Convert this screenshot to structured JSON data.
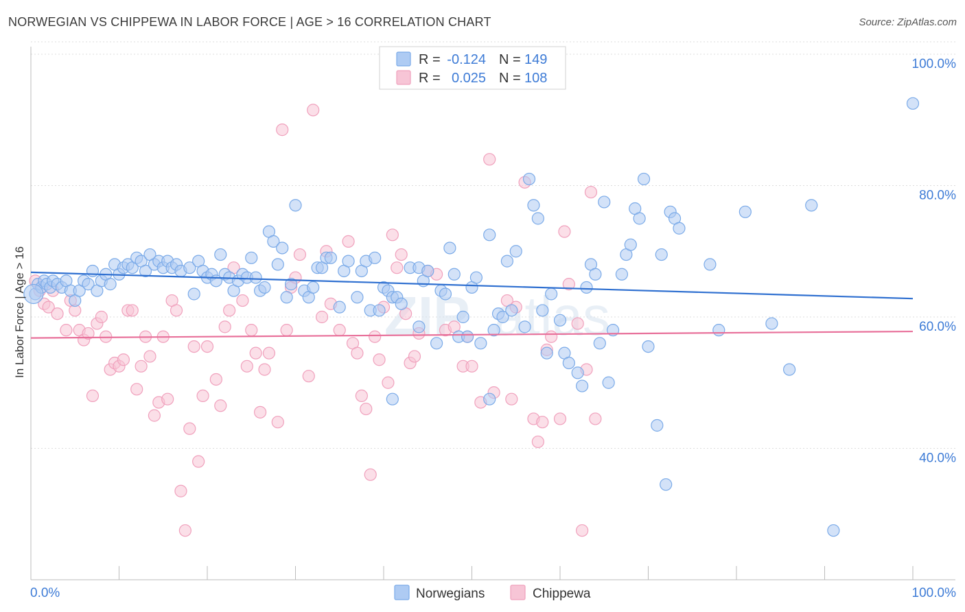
{
  "title": "NORWEGIAN VS CHIPPEWA IN LABOR FORCE | AGE > 16 CORRELATION CHART",
  "source": "Source: ZipAtlas.com",
  "watermark": {
    "a": "ZIP",
    "b": "atlas"
  },
  "chart_data": {
    "type": "scatter",
    "title": "NORWEGIAN VS CHIPPEWA IN LABOR FORCE | AGE > 16 CORRELATION CHART",
    "xlabel": "",
    "ylabel": "In Labor Force | Age > 16",
    "xlim": [
      0,
      100
    ],
    "ylim": [
      20,
      100
    ],
    "y_ticks": [
      {
        "v": 40,
        "label": "40.0%"
      },
      {
        "v": 60,
        "label": "60.0%"
      },
      {
        "v": 80,
        "label": "80.0%"
      },
      {
        "v": 100,
        "label": "100.0%"
      }
    ],
    "x_ticks": [
      {
        "v": 0,
        "label": "0.0%"
      },
      {
        "v": 100,
        "label": "100.0%"
      }
    ],
    "grid": true,
    "legend_position": "top-center",
    "legend": [
      {
        "name": "Norwegians",
        "R_label": "R =",
        "R": "-0.124",
        "N_label": "N =",
        "N": "149",
        "color": "#7aaae8",
        "fill": "#aecbf3"
      },
      {
        "name": "Chippewa",
        "R_label": "R =",
        "R": "0.025",
        "N_label": "N =",
        "N": "108",
        "color": "#f0a0bc",
        "fill": "#f7c5d6"
      }
    ],
    "series": [
      {
        "name": "Norwegians",
        "color": "#7aaae8",
        "fill": "#aecbf3",
        "trend": {
          "x": [
            0,
            100
          ],
          "y": [
            66.8,
            62.8
          ],
          "color": "#2e6fd0"
        },
        "points": [
          [
            0.5,
            63.5
          ],
          [
            0.8,
            65
          ],
          [
            1.2,
            64.5
          ],
          [
            1.5,
            65.5
          ],
          [
            1.8,
            65
          ],
          [
            2.2,
            64.5
          ],
          [
            2.5,
            65.5
          ],
          [
            3,
            65
          ],
          [
            3.5,
            64.5
          ],
          [
            4,
            65.5
          ],
          [
            4.5,
            64
          ],
          [
            5,
            62.5
          ],
          [
            5.5,
            64
          ],
          [
            6,
            65.5
          ],
          [
            6.5,
            65
          ],
          [
            7,
            67
          ],
          [
            7.5,
            64
          ],
          [
            8,
            65.5
          ],
          [
            8.5,
            66.5
          ],
          [
            9,
            65
          ],
          [
            9.5,
            68
          ],
          [
            10,
            66.5
          ],
          [
            10.5,
            67.5
          ],
          [
            11,
            68
          ],
          [
            11.5,
            67.5
          ],
          [
            12,
            69
          ],
          [
            12.5,
            68.5
          ],
          [
            13,
            67
          ],
          [
            13.5,
            69.5
          ],
          [
            14,
            68
          ],
          [
            14.5,
            68.5
          ],
          [
            15,
            67.5
          ],
          [
            15.5,
            68.5
          ],
          [
            16,
            67.5
          ],
          [
            16.5,
            68
          ],
          [
            17,
            67
          ],
          [
            18,
            67.5
          ],
          [
            18.5,
            63.5
          ],
          [
            19,
            68.5
          ],
          [
            19.5,
            67
          ],
          [
            20,
            66
          ],
          [
            20.5,
            66.5
          ],
          [
            21,
            65.5
          ],
          [
            21.5,
            69.5
          ],
          [
            22,
            66.5
          ],
          [
            22.5,
            66
          ],
          [
            23,
            64
          ],
          [
            23.5,
            65.5
          ],
          [
            24,
            66.5
          ],
          [
            24.5,
            66
          ],
          [
            25,
            69
          ],
          [
            25.5,
            66
          ],
          [
            26,
            64
          ],
          [
            26.5,
            64.5
          ],
          [
            27,
            73
          ],
          [
            27.5,
            71.5
          ],
          [
            28,
            68
          ],
          [
            28.5,
            70.5
          ],
          [
            29,
            63
          ],
          [
            29.5,
            65
          ],
          [
            30,
            77
          ],
          [
            31,
            64
          ],
          [
            31.5,
            63
          ],
          [
            32,
            64.5
          ],
          [
            32.5,
            67.5
          ],
          [
            33,
            67.5
          ],
          [
            33.5,
            69
          ],
          [
            34,
            69
          ],
          [
            35,
            61.5
          ],
          [
            35.5,
            67
          ],
          [
            36,
            68.5
          ],
          [
            37,
            63
          ],
          [
            37.5,
            67
          ],
          [
            38,
            68.5
          ],
          [
            38.5,
            61
          ],
          [
            39,
            69
          ],
          [
            39.5,
            61
          ],
          [
            40,
            64.5
          ],
          [
            40.5,
            64
          ],
          [
            41,
            63
          ],
          [
            41.5,
            63
          ],
          [
            42,
            62
          ],
          [
            43,
            67.5
          ],
          [
            44,
            67.5
          ],
          [
            44.5,
            65.5
          ],
          [
            45,
            67
          ],
          [
            46,
            56
          ],
          [
            46.5,
            64
          ],
          [
            47,
            63.5
          ],
          [
            47.5,
            70.5
          ],
          [
            48,
            66.5
          ],
          [
            48.5,
            57
          ],
          [
            49,
            60
          ],
          [
            49.5,
            57
          ],
          [
            50,
            64.5
          ],
          [
            50.5,
            66
          ],
          [
            51,
            56
          ],
          [
            52,
            72.5
          ],
          [
            52.5,
            58
          ],
          [
            53,
            60.5
          ],
          [
            53.5,
            60
          ],
          [
            54,
            68.5
          ],
          [
            54.5,
            61
          ],
          [
            55,
            70
          ],
          [
            56,
            58.5
          ],
          [
            56.5,
            81
          ],
          [
            57,
            77
          ],
          [
            57.5,
            75
          ],
          [
            58,
            61
          ],
          [
            58.5,
            54.5
          ],
          [
            59,
            63.5
          ],
          [
            60,
            59.5
          ],
          [
            60.5,
            54.5
          ],
          [
            61,
            53
          ],
          [
            62,
            51.5
          ],
          [
            62.5,
            49.5
          ],
          [
            63,
            64.5
          ],
          [
            63.5,
            68
          ],
          [
            64,
            66.5
          ],
          [
            64.5,
            56
          ],
          [
            65,
            77.5
          ],
          [
            65.5,
            50
          ],
          [
            66,
            58
          ],
          [
            67,
            66.5
          ],
          [
            67.5,
            69.5
          ],
          [
            68,
            71
          ],
          [
            68.5,
            76.5
          ],
          [
            69,
            75
          ],
          [
            69.5,
            81
          ],
          [
            70,
            55.5
          ],
          [
            71,
            43.5
          ],
          [
            71.5,
            69.5
          ],
          [
            72,
            34.5
          ],
          [
            72.5,
            76
          ],
          [
            73,
            75
          ],
          [
            73.5,
            73.5
          ],
          [
            77,
            68
          ],
          [
            78,
            58
          ],
          [
            81,
            76
          ],
          [
            84,
            59
          ],
          [
            86,
            52
          ],
          [
            88.5,
            77
          ],
          [
            91,
            27.5
          ],
          [
            100,
            92.5
          ],
          [
            41,
            47.5
          ],
          [
            44,
            58.5
          ],
          [
            52,
            47.5
          ]
        ]
      },
      {
        "name": "Chippewa",
        "color": "#f0a0bc",
        "fill": "#f7c5d6",
        "trend": {
          "x": [
            0,
            100
          ],
          "y": [
            56.8,
            57.8
          ],
          "color": "#e8709a"
        },
        "points": [
          [
            0.5,
            65.5
          ],
          [
            1,
            64
          ],
          [
            1.5,
            62
          ],
          [
            2,
            61.5
          ],
          [
            2.5,
            64
          ],
          [
            3,
            60.5
          ],
          [
            4,
            58
          ],
          [
            4.5,
            62.5
          ],
          [
            5,
            61
          ],
          [
            5.5,
            58
          ],
          [
            6,
            56.5
          ],
          [
            6.5,
            57.5
          ],
          [
            7,
            48
          ],
          [
            7.5,
            59
          ],
          [
            8,
            60
          ],
          [
            8.5,
            57
          ],
          [
            9,
            52
          ],
          [
            9.5,
            53
          ],
          [
            10,
            52.5
          ],
          [
            10.5,
            53.5
          ],
          [
            11,
            61
          ],
          [
            11.5,
            61
          ],
          [
            12,
            49
          ],
          [
            12.5,
            52.5
          ],
          [
            13,
            57
          ],
          [
            13.5,
            54
          ],
          [
            14,
            45
          ],
          [
            14.5,
            47
          ],
          [
            15,
            57
          ],
          [
            15.5,
            47.5
          ],
          [
            16,
            62.5
          ],
          [
            16.5,
            61
          ],
          [
            17,
            33.5
          ],
          [
            17.5,
            27.5
          ],
          [
            18,
            43
          ],
          [
            18.5,
            55.5
          ],
          [
            19,
            38
          ],
          [
            19.5,
            48
          ],
          [
            20,
            55.5
          ],
          [
            21,
            50.5
          ],
          [
            21.5,
            46.5
          ],
          [
            22,
            58.5
          ],
          [
            22.5,
            61
          ],
          [
            23,
            67.5
          ],
          [
            24,
            62.5
          ],
          [
            24.5,
            52.5
          ],
          [
            25,
            58
          ],
          [
            25.5,
            54.5
          ],
          [
            26,
            45.5
          ],
          [
            26.5,
            52
          ],
          [
            27,
            54.5
          ],
          [
            28,
            44
          ],
          [
            28.5,
            88.5
          ],
          [
            29,
            58
          ],
          [
            29.5,
            64.5
          ],
          [
            30,
            66
          ],
          [
            30.5,
            69.5
          ],
          [
            31.5,
            51
          ],
          [
            32,
            91.5
          ],
          [
            33,
            60
          ],
          [
            33.5,
            70
          ],
          [
            34,
            62
          ],
          [
            35,
            58
          ],
          [
            36,
            71.5
          ],
          [
            36.5,
            56
          ],
          [
            37,
            54.5
          ],
          [
            37.5,
            48
          ],
          [
            38,
            46
          ],
          [
            38.5,
            36
          ],
          [
            39,
            57
          ],
          [
            39.5,
            53.5
          ],
          [
            40,
            61.5
          ],
          [
            40.5,
            50
          ],
          [
            41,
            72.5
          ],
          [
            41.5,
            67.5
          ],
          [
            42,
            69.5
          ],
          [
            42.5,
            60.5
          ],
          [
            43,
            53
          ],
          [
            43.5,
            54
          ],
          [
            44,
            57.5
          ],
          [
            45,
            67
          ],
          [
            46,
            66.5
          ],
          [
            47,
            58
          ],
          [
            48,
            58.5
          ],
          [
            49,
            52.5
          ],
          [
            49.5,
            57
          ],
          [
            50,
            52.5
          ],
          [
            51,
            47
          ],
          [
            52,
            84
          ],
          [
            52.5,
            48.5
          ],
          [
            54,
            62.5
          ],
          [
            54.5,
            47.5
          ],
          [
            55,
            61.5
          ],
          [
            56,
            80.5
          ],
          [
            57,
            44.5
          ],
          [
            57.5,
            41
          ],
          [
            58,
            44
          ],
          [
            58.5,
            55
          ],
          [
            59,
            57
          ],
          [
            60,
            44.5
          ],
          [
            60.5,
            73
          ],
          [
            61,
            65
          ],
          [
            62,
            59
          ],
          [
            62.5,
            27.5
          ],
          [
            63,
            52
          ],
          [
            63.5,
            79
          ],
          [
            64,
            44.5
          ]
        ]
      }
    ]
  }
}
